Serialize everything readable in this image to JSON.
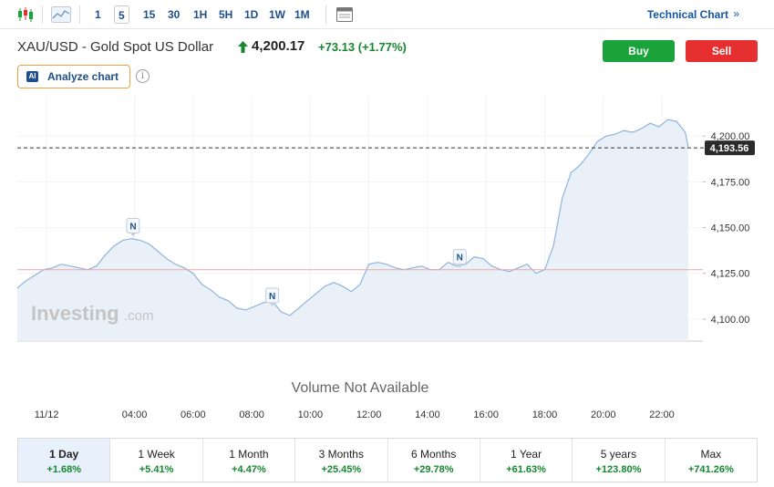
{
  "toolbar": {
    "timeframes": [
      "1",
      "5",
      "15",
      "30",
      "1H",
      "5H",
      "1D",
      "1W",
      "1M"
    ],
    "active_timeframe": "5",
    "technical_chart_label": "Technical Chart",
    "technical_chart_arrow": "»"
  },
  "header": {
    "instrument": "XAU/USD - Gold Spot US Dollar",
    "price": "4,200.17",
    "change": "+73.13 (+1.77%)",
    "buy_label": "Buy",
    "sell_label": "Sell",
    "analyze_label": "Analyze chart",
    "ai_badge": "AI",
    "info_glyph": "i"
  },
  "colors": {
    "accent": "#1f4e8c",
    "positive": "#14872f",
    "buy": "#1aa33b",
    "sell": "#e62f2f",
    "line": "#8fb4dc",
    "area": "#e9f0f8",
    "reference_line": "#e9a8a8"
  },
  "chart_data": {
    "type": "area",
    "x_ticks": [
      "11/12",
      "04:00",
      "06:00",
      "08:00",
      "10:00",
      "12:00",
      "14:00",
      "16:00",
      "18:00",
      "20:00",
      "22:00"
    ],
    "y_ticks": [
      "4,200.00",
      "4,175.00",
      "4,150.00",
      "4,125.00",
      "4,100.00"
    ],
    "y_tick_values": [
      4200,
      4175,
      4150,
      4125,
      4100
    ],
    "ylim": [
      4088,
      4222
    ],
    "xlim": [
      0,
      23.4
    ],
    "current_price_label": "4,193.56",
    "current_price": 4193.56,
    "reference_price": 4127,
    "watermark": "Investing",
    "watermark_suffix": ".com",
    "volume_text": "Volume Not Available",
    "news_marker_label": "N",
    "news_markers": [
      {
        "x": 3.95,
        "y": 4151
      },
      {
        "x": 8.7,
        "y": 4113
      },
      {
        "x": 15.1,
        "y": 4134
      }
    ],
    "series": [
      {
        "x": [
          0,
          0.3,
          0.6,
          0.9,
          1.2,
          1.5,
          1.8,
          2.1,
          2.4,
          2.7,
          3.0,
          3.3,
          3.6,
          3.9,
          4.2,
          4.5,
          4.8,
          5.1,
          5.4,
          5.7,
          6.0,
          6.3,
          6.6,
          6.9,
          7.2,
          7.5,
          7.8,
          8.1,
          8.4,
          8.7,
          9.0,
          9.3,
          9.6,
          9.9,
          10.2,
          10.5,
          10.8,
          11.1,
          11.4,
          11.7,
          12.0,
          12.3,
          12.6,
          12.9,
          13.2,
          13.5,
          13.8,
          14.1,
          14.4,
          14.7,
          15.0,
          15.3,
          15.6,
          15.9,
          16.2,
          16.5,
          16.8,
          17.1,
          17.4,
          17.7,
          18.0,
          18.3,
          18.6,
          18.9,
          19.2,
          19.5,
          19.8,
          20.1,
          20.4,
          20.7,
          21.0,
          21.3,
          21.6,
          21.9,
          22.2,
          22.5,
          22.8,
          22.9
        ],
        "values": [
          4117,
          4121,
          4124,
          4127,
          4128,
          4130,
          4129,
          4128,
          4127,
          4129,
          4135,
          4140,
          4143,
          4144,
          4143,
          4141,
          4137,
          4133,
          4130,
          4128,
          4125,
          4119,
          4116,
          4112,
          4110,
          4106,
          4105,
          4107,
          4109,
          4110,
          4104,
          4102,
          4106,
          4110,
          4114,
          4118,
          4120,
          4118,
          4115,
          4119,
          4130,
          4131,
          4130,
          4128,
          4127,
          4128,
          4129,
          4127,
          4127,
          4131,
          4129,
          4130,
          4134,
          4133,
          4129,
          4127,
          4126,
          4128,
          4130,
          4125,
          4127,
          4140,
          4166,
          4180,
          4184,
          4190,
          4197,
          4200,
          4201,
          4203,
          4202,
          4204,
          4207,
          4205,
          4209,
          4208,
          4202,
          4194
        ]
      }
    ]
  },
  "periods": [
    {
      "label": "1 Day",
      "value": "+1.68%",
      "active": true
    },
    {
      "label": "1 Week",
      "value": "+5.41%",
      "active": false
    },
    {
      "label": "1 Month",
      "value": "+4.47%",
      "active": false
    },
    {
      "label": "3 Months",
      "value": "+25.45%",
      "active": false
    },
    {
      "label": "6 Months",
      "value": "+29.78%",
      "active": false
    },
    {
      "label": "1 Year",
      "value": "+61.63%",
      "active": false
    },
    {
      "label": "5 years",
      "value": "+123.80%",
      "active": false
    },
    {
      "label": "Max",
      "value": "+741.26%",
      "active": false
    }
  ]
}
